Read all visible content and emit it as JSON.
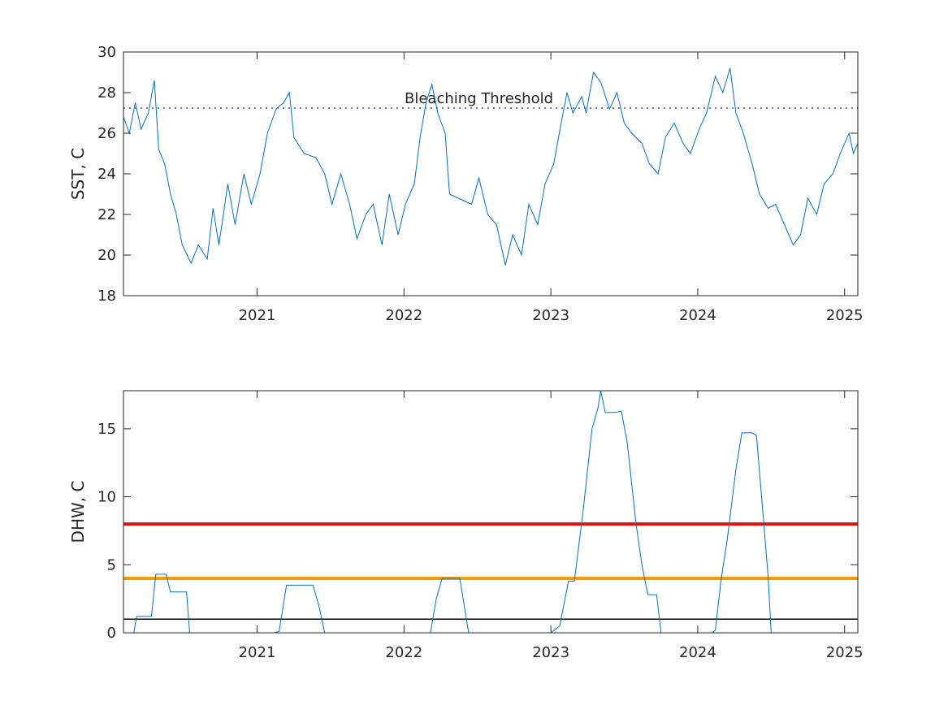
{
  "chart_data": [
    {
      "type": "line",
      "ylabel": "SST, C",
      "color": "#0072bd",
      "xlim": [
        2020.09,
        2025.09
      ],
      "xticks": [
        2021,
        2022,
        2023,
        2024,
        2025
      ],
      "ylim": [
        18,
        30
      ],
      "yticks": [
        18,
        20,
        22,
        24,
        26,
        28,
        30
      ],
      "hlines": [
        {
          "value": 27.24,
          "color": "#4a4ad8",
          "style": "dotted",
          "label": "Bleaching Threshold"
        }
      ],
      "x": [
        2020.09,
        2020.13,
        2020.17,
        2020.21,
        2020.26,
        2020.3,
        2020.33,
        2020.37,
        2020.41,
        2020.45,
        2020.49,
        2020.55,
        2020.6,
        2020.66,
        2020.7,
        2020.74,
        2020.8,
        2020.85,
        2020.91,
        2020.96,
        2021.02,
        2021.07,
        2021.13,
        2021.18,
        2021.22,
        2021.25,
        2021.32,
        2021.4,
        2021.46,
        2021.51,
        2021.57,
        2021.63,
        2021.68,
        2021.74,
        2021.79,
        2021.85,
        2021.9,
        2021.96,
        2022.01,
        2022.07,
        2022.11,
        2022.15,
        2022.19,
        2022.23,
        2022.28,
        2022.31,
        2022.37,
        2022.46,
        2022.51,
        2022.57,
        2022.63,
        2022.69,
        2022.74,
        2022.8,
        2022.85,
        2022.91,
        2022.96,
        2023.02,
        2023.07,
        2023.11,
        2023.15,
        2023.21,
        2023.24,
        2023.29,
        2023.34,
        2023.4,
        2023.45,
        2023.5,
        2023.55,
        2023.62,
        2023.67,
        2023.73,
        2023.78,
        2023.84,
        2023.9,
        2023.95,
        2024.01,
        2024.06,
        2024.12,
        2024.17,
        2024.22,
        2024.26,
        2024.31,
        2024.37,
        2024.42,
        2024.48,
        2024.53,
        2024.59,
        2024.65,
        2024.7,
        2024.75,
        2024.81,
        2024.86,
        2024.92,
        2024.97,
        2025.03,
        2025.06,
        2025.09
      ],
      "values": [
        26.8,
        26.0,
        27.5,
        26.2,
        27.0,
        28.6,
        25.2,
        24.5,
        23.0,
        22.0,
        20.5,
        19.6,
        20.5,
        19.8,
        22.3,
        20.5,
        23.5,
        21.5,
        24.0,
        22.5,
        24.0,
        26.0,
        27.2,
        27.5,
        28.0,
        25.8,
        25.0,
        24.8,
        24.0,
        22.5,
        24.0,
        22.5,
        20.8,
        22.0,
        22.5,
        20.5,
        23.0,
        21.0,
        22.5,
        23.5,
        25.8,
        27.5,
        28.4,
        27.0,
        26.0,
        23.0,
        22.8,
        22.5,
        23.8,
        22.0,
        21.5,
        19.5,
        21.0,
        20.0,
        22.5,
        21.5,
        23.5,
        24.5,
        26.5,
        28.0,
        27.0,
        27.8,
        27.0,
        29.0,
        28.5,
        27.2,
        28.0,
        26.5,
        26.0,
        25.5,
        24.5,
        24.0,
        25.8,
        26.5,
        25.5,
        25.0,
        26.2,
        27.0,
        28.8,
        28.0,
        29.2,
        27.0,
        26.0,
        24.5,
        23.0,
        22.3,
        22.5,
        21.5,
        20.5,
        21.0,
        22.8,
        22.0,
        23.5,
        24.0,
        25.0,
        26.0,
        25.0,
        25.5
      ]
    },
    {
      "type": "line",
      "ylabel": "DHW, C",
      "color": "#0072bd",
      "xlim": [
        2020.09,
        2025.09
      ],
      "xticks": [
        2021,
        2022,
        2023,
        2024,
        2025
      ],
      "ylim": [
        0,
        17.8
      ],
      "yticks": [
        0,
        5,
        10,
        15
      ],
      "hlines": [
        {
          "value": 1,
          "color": "#000000",
          "style": "solid"
        },
        {
          "value": 4,
          "color": "#f5a000",
          "style": "thick"
        },
        {
          "value": 8,
          "color": "#e01010",
          "style": "thick"
        }
      ],
      "x": [
        2020.09,
        2020.16,
        2020.18,
        2020.28,
        2020.31,
        2020.38,
        2020.41,
        2020.52,
        2020.54,
        2021.12,
        2021.15,
        2021.2,
        2021.38,
        2021.42,
        2021.46,
        2022.18,
        2022.22,
        2022.26,
        2022.38,
        2022.44,
        2023.0,
        2023.06,
        2023.12,
        2023.16,
        2023.22,
        2023.28,
        2023.32,
        2023.34,
        2023.37,
        2023.44,
        2023.48,
        2023.52,
        2023.58,
        2023.62,
        2023.66,
        2023.72,
        2023.75,
        2024.1,
        2024.12,
        2024.16,
        2024.2,
        2024.26,
        2024.3,
        2024.37,
        2024.4,
        2024.45,
        2024.48,
        2024.5,
        2025.09
      ],
      "values": [
        0,
        0,
        1.2,
        1.2,
        4.3,
        4.3,
        3.0,
        3.0,
        0,
        0,
        0.1,
        3.5,
        3.5,
        2.0,
        0,
        0,
        2.5,
        4.0,
        4.0,
        0,
        0,
        0.5,
        3.8,
        3.8,
        9.0,
        15.0,
        16.5,
        17.8,
        16.2,
        16.2,
        16.3,
        14.0,
        8.0,
        5.0,
        2.8,
        2.8,
        0,
        0,
        0.2,
        4.0,
        6.8,
        12.0,
        14.7,
        14.7,
        14.5,
        8.0,
        4.0,
        0,
        0
      ]
    }
  ]
}
